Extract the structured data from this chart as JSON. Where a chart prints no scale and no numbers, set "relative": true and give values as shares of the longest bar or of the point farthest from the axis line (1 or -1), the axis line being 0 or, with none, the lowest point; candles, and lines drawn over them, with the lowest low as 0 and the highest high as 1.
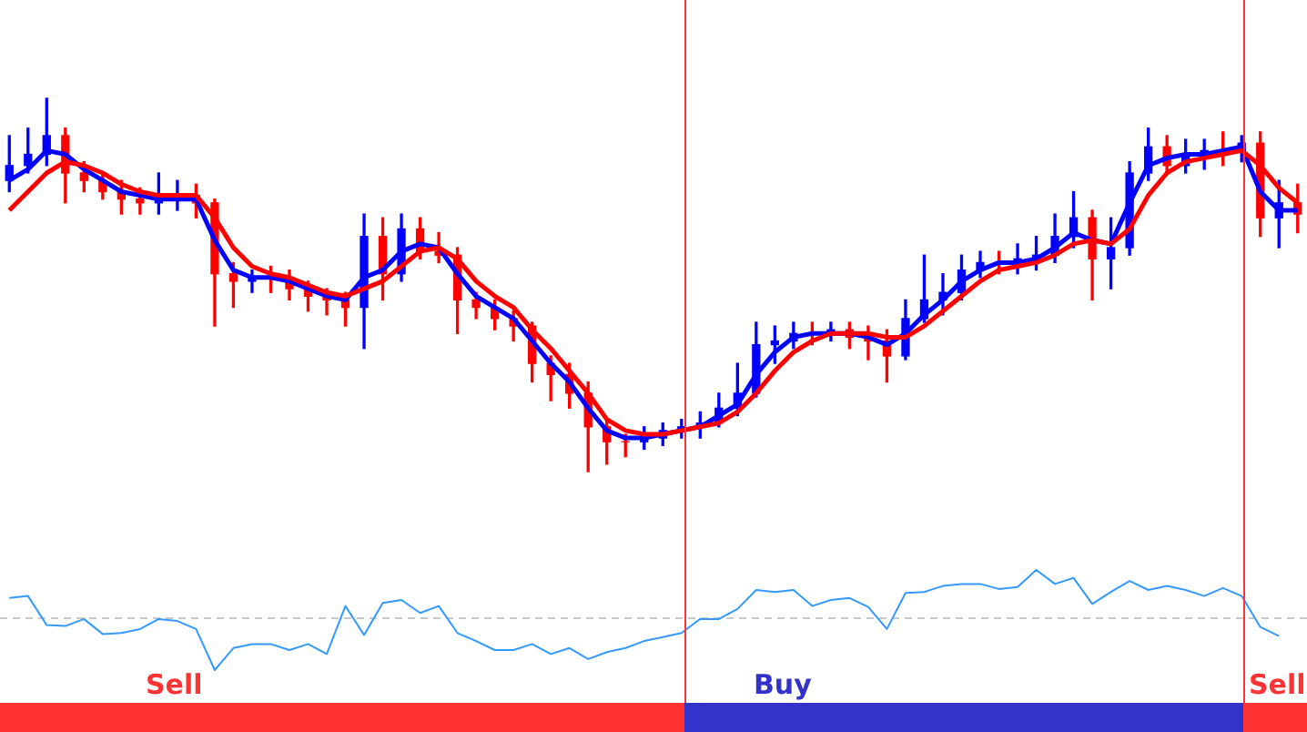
{
  "chart_data": [
    {
      "type": "candlestick",
      "relative": true,
      "marker": "none",
      "categories": [
        null,
        null,
        null,
        null,
        null,
        null,
        null,
        null,
        null,
        null,
        null,
        null,
        null,
        null,
        null,
        null,
        null,
        null,
        null,
        null,
        null,
        null,
        null,
        null,
        null,
        null,
        null,
        null,
        null,
        null,
        null,
        null,
        null,
        null,
        null,
        null,
        null,
        null,
        null,
        null,
        null,
        null,
        null,
        null,
        null,
        null,
        null,
        null,
        null,
        null,
        null,
        null,
        null,
        null,
        null,
        null,
        null,
        null,
        null,
        null,
        null,
        null,
        null,
        null,
        null,
        null,
        null,
        null,
        null,
        null
      ],
      "ohlc": [
        [
          0.78,
          0.9,
          0.75,
          0.82
        ],
        [
          0.82,
          0.92,
          0.8,
          0.85
        ],
        [
          0.85,
          1.0,
          0.82,
          0.9
        ],
        [
          0.9,
          0.92,
          0.72,
          0.8
        ],
        [
          0.8,
          0.83,
          0.75,
          0.78
        ],
        [
          0.78,
          0.8,
          0.73,
          0.75
        ],
        [
          0.75,
          0.78,
          0.69,
          0.73
        ],
        [
          0.73,
          0.76,
          0.69,
          0.72
        ],
        [
          0.72,
          0.8,
          0.69,
          0.73
        ],
        [
          0.73,
          0.78,
          0.7,
          0.74
        ],
        [
          0.74,
          0.77,
          0.68,
          0.72
        ],
        [
          0.72,
          0.73,
          0.39,
          0.53
        ],
        [
          0.53,
          0.56,
          0.44,
          0.51
        ],
        [
          0.51,
          0.54,
          0.48,
          0.52
        ],
        [
          0.52,
          0.55,
          0.48,
          0.52
        ],
        [
          0.52,
          0.54,
          0.46,
          0.49
        ],
        [
          0.49,
          0.51,
          0.43,
          0.47
        ],
        [
          0.47,
          0.49,
          0.42,
          0.46
        ],
        [
          0.46,
          0.48,
          0.39,
          0.44
        ],
        [
          0.44,
          0.69,
          0.33,
          0.63
        ],
        [
          0.63,
          0.68,
          0.46,
          0.53
        ],
        [
          0.53,
          0.69,
          0.51,
          0.65
        ],
        [
          0.65,
          0.68,
          0.57,
          0.59
        ],
        [
          0.59,
          0.64,
          0.56,
          0.58
        ],
        [
          0.58,
          0.6,
          0.37,
          0.46
        ],
        [
          0.46,
          0.48,
          0.41,
          0.44
        ],
        [
          0.44,
          0.46,
          0.38,
          0.41
        ],
        [
          0.41,
          0.43,
          0.35,
          0.39
        ],
        [
          0.39,
          0.4,
          0.24,
          0.29
        ],
        [
          0.29,
          0.31,
          0.19,
          0.26
        ],
        [
          0.26,
          0.29,
          0.17,
          0.21
        ],
        [
          0.21,
          0.24,
          0.0,
          0.12
        ],
        [
          0.12,
          0.14,
          0.02,
          0.08
        ],
        [
          0.08,
          0.1,
          0.04,
          0.08
        ],
        [
          0.08,
          0.12,
          0.06,
          0.09
        ],
        [
          0.09,
          0.13,
          0.07,
          0.11
        ],
        [
          0.11,
          0.14,
          0.09,
          0.12
        ],
        [
          0.12,
          0.16,
          0.09,
          0.13
        ],
        [
          0.13,
          0.21,
          0.12,
          0.17
        ],
        [
          0.17,
          0.29,
          0.15,
          0.21
        ],
        [
          0.21,
          0.4,
          0.2,
          0.34
        ],
        [
          0.34,
          0.39,
          0.29,
          0.35
        ],
        [
          0.35,
          0.4,
          0.33,
          0.37
        ],
        [
          0.37,
          0.4,
          0.34,
          0.37
        ],
        [
          0.37,
          0.4,
          0.35,
          0.38
        ],
        [
          0.38,
          0.4,
          0.33,
          0.36
        ],
        [
          0.36,
          0.39,
          0.3,
          0.35
        ],
        [
          0.35,
          0.38,
          0.24,
          0.31
        ],
        [
          0.31,
          0.46,
          0.3,
          0.41
        ],
        [
          0.41,
          0.58,
          0.4,
          0.46
        ],
        [
          0.46,
          0.53,
          0.42,
          0.48
        ],
        [
          0.48,
          0.58,
          0.46,
          0.54
        ],
        [
          0.54,
          0.59,
          0.52,
          0.56
        ],
        [
          0.56,
          0.59,
          0.53,
          0.56
        ],
        [
          0.56,
          0.61,
          0.53,
          0.57
        ],
        [
          0.57,
          0.63,
          0.54,
          0.58
        ],
        [
          0.58,
          0.69,
          0.56,
          0.63
        ],
        [
          0.63,
          0.75,
          0.6,
          0.68
        ],
        [
          0.68,
          0.7,
          0.46,
          0.57
        ],
        [
          0.57,
          0.68,
          0.49,
          0.6
        ],
        [
          0.6,
          0.83,
          0.58,
          0.8
        ],
        [
          0.8,
          0.92,
          0.78,
          0.87
        ],
        [
          0.87,
          0.9,
          0.8,
          0.82
        ],
        [
          0.82,
          0.89,
          0.8,
          0.85
        ],
        [
          0.85,
          0.89,
          0.81,
          0.86
        ],
        [
          0.86,
          0.91,
          0.82,
          0.86
        ],
        [
          0.86,
          0.9,
          0.83,
          0.88
        ],
        [
          0.88,
          0.91,
          0.63,
          0.68
        ],
        [
          0.68,
          0.78,
          0.6,
          0.72
        ],
        [
          0.72,
          0.77,
          0.64,
          0.69
        ]
      ],
      "colors": [
        "#0000ff",
        "#0000ff",
        "#0000ff",
        "#ff0000",
        "#ff0000",
        "#ff0000",
        "#ff0000",
        "#ff0000",
        "#0000ff",
        "#0000ff",
        "#ff0000",
        "#ff0000",
        "#ff0000",
        "#0000ff",
        "#ff0000",
        "#ff0000",
        "#ff0000",
        "#ff0000",
        "#ff0000",
        "#0000ff",
        "#ff0000",
        "#0000ff",
        "#ff0000",
        "#ff0000",
        "#ff0000",
        "#ff0000",
        "#ff0000",
        "#ff0000",
        "#ff0000",
        "#ff0000",
        "#ff0000",
        "#ff0000",
        "#ff0000",
        "#ff0000",
        "#0000ff",
        "#0000ff",
        "#0000ff",
        "#0000ff",
        "#0000ff",
        "#0000ff",
        "#0000ff",
        "#0000ff",
        "#0000ff",
        "#ff0000",
        "#0000ff",
        "#ff0000",
        "#ff0000",
        "#ff0000",
        "#0000ff",
        "#0000ff",
        "#0000ff",
        "#0000ff",
        "#0000ff",
        "#ff0000",
        "#0000ff",
        "#0000ff",
        "#0000ff",
        "#0000ff",
        "#ff0000",
        "#0000ff",
        "#0000ff",
        "#0000ff",
        "#ff0000",
        "#0000ff",
        "#0000ff",
        "#ff0000",
        "#0000ff",
        "#ff0000",
        "#0000ff",
        "#ff0000"
      ],
      "series": [
        {
          "type": "line",
          "color": "#ff0000",
          "values": [
            0.7,
            0.75,
            0.8,
            0.83,
            0.82,
            0.8,
            0.77,
            0.75,
            0.74,
            0.74,
            0.74,
            0.68,
            0.6,
            0.55,
            0.53,
            0.52,
            0.5,
            0.48,
            0.47,
            0.49,
            0.51,
            0.55,
            0.59,
            0.6,
            0.57,
            0.51,
            0.47,
            0.44,
            0.38,
            0.33,
            0.27,
            0.21,
            0.14,
            0.11,
            0.1,
            0.1,
            0.11,
            0.12,
            0.13,
            0.16,
            0.21,
            0.27,
            0.32,
            0.35,
            0.37,
            0.37,
            0.37,
            0.36,
            0.36,
            0.39,
            0.43,
            0.47,
            0.51,
            0.54,
            0.55,
            0.56,
            0.58,
            0.61,
            0.62,
            0.61,
            0.65,
            0.74,
            0.8,
            0.83,
            0.84,
            0.85,
            0.86,
            0.82,
            0.76,
            0.72
          ]
        },
        {
          "type": "line",
          "color": "#0000ff",
          "values": [
            0.78,
            0.81,
            0.86,
            0.85,
            0.81,
            0.78,
            0.75,
            0.74,
            0.73,
            0.73,
            0.73,
            0.62,
            0.54,
            0.52,
            0.52,
            0.51,
            0.49,
            0.47,
            0.46,
            0.52,
            0.54,
            0.59,
            0.61,
            0.6,
            0.53,
            0.47,
            0.44,
            0.41,
            0.35,
            0.29,
            0.24,
            0.17,
            0.11,
            0.09,
            0.09,
            0.1,
            0.11,
            0.12,
            0.15,
            0.18,
            0.26,
            0.32,
            0.36,
            0.37,
            0.37,
            0.37,
            0.36,
            0.34,
            0.37,
            0.42,
            0.46,
            0.51,
            0.54,
            0.56,
            0.56,
            0.57,
            0.6,
            0.64,
            0.62,
            0.61,
            0.72,
            0.82,
            0.84,
            0.85,
            0.85,
            0.86,
            0.87,
            0.75,
            0.7,
            0.7
          ]
        }
      ]
    },
    {
      "type": "line",
      "relative": true,
      "marker": "none",
      "color": "#3399ff",
      "categories": [
        null,
        null,
        null,
        null,
        null,
        null,
        null,
        null,
        null,
        null,
        null,
        null,
        null,
        null,
        null,
        null,
        null,
        null,
        null,
        null,
        null,
        null,
        null,
        null,
        null,
        null,
        null,
        null,
        null,
        null,
        null,
        null,
        null,
        null,
        null,
        null,
        null,
        null,
        null,
        null,
        null,
        null,
        null,
        null,
        null,
        null,
        null,
        null,
        null,
        null,
        null,
        null,
        null,
        null,
        null,
        null,
        null,
        null,
        null,
        null,
        null,
        null,
        null,
        null,
        null,
        null,
        null,
        null,
        null,
        null
      ],
      "values": [
        0.72,
        0.74,
        0.45,
        0.44,
        0.51,
        0.36,
        0.37,
        0.41,
        0.51,
        0.49,
        0.41,
        0.0,
        0.22,
        0.26,
        0.26,
        0.2,
        0.26,
        0.16,
        0.64,
        0.35,
        0.67,
        0.7,
        0.57,
        0.64,
        0.37,
        0.29,
        0.2,
        0.2,
        0.26,
        0.16,
        0.22,
        0.11,
        0.18,
        0.22,
        0.29,
        0.33,
        0.37,
        0.51,
        0.51,
        0.61,
        0.8,
        0.78,
        0.8,
        0.64,
        0.7,
        0.72,
        0.63,
        0.41,
        0.77,
        0.78,
        0.84,
        0.86,
        0.86,
        0.81,
        0.83,
        1.0,
        0.86,
        0.92,
        0.66,
        0.78,
        0.89,
        0.8,
        0.84,
        0.8,
        0.74,
        0.82,
        0.74,
        0.43,
        0.34,
        null
      ],
      "ref_lines": [
        {
          "axis": "y",
          "value": 0.52,
          "color": "#c8c8c8",
          "line_style": "dashed"
        }
      ],
      "annotations": [
        "Sell",
        "Buy",
        "Sell"
      ]
    }
  ]
}
